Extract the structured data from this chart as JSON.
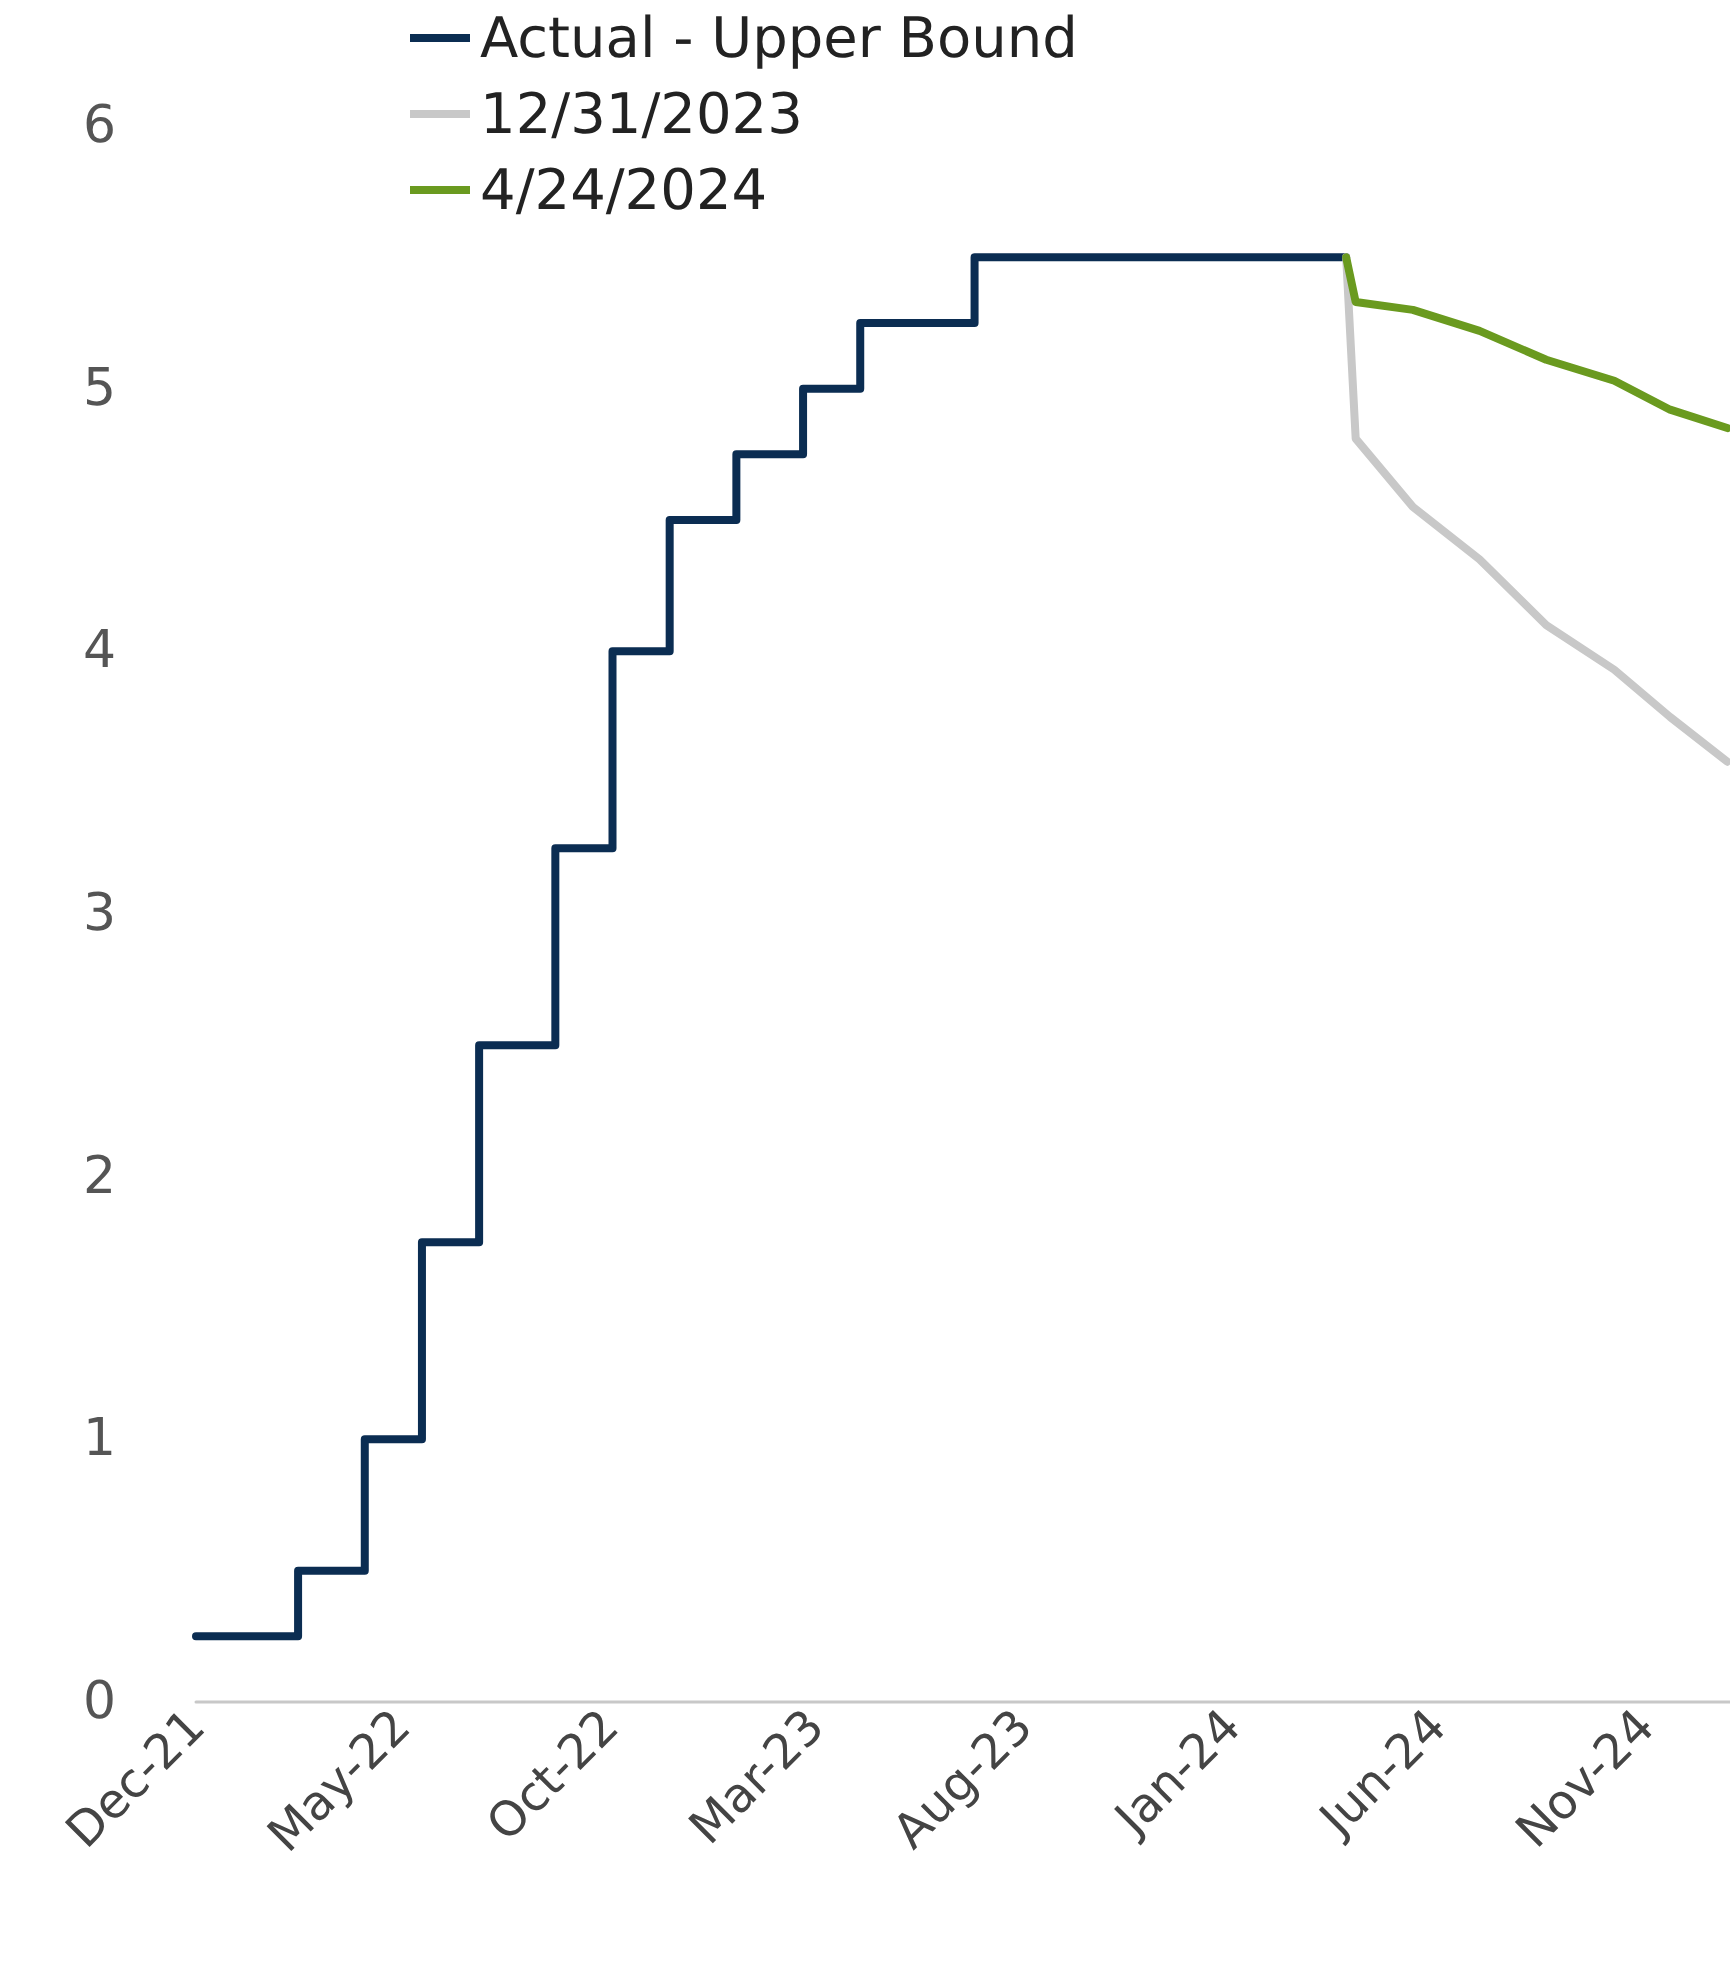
{
  "chart_data": {
    "type": "line",
    "series": [
      {
        "name": "Actual - Upper Bound",
        "type": "step",
        "color": "#0b2d52",
        "x": [
          "2021-12-31",
          "2022-03-16",
          "2022-05-04",
          "2022-06-15",
          "2022-07-27",
          "2022-09-21",
          "2022-11-02",
          "2022-12-14",
          "2023-02-01",
          "2023-03-22",
          "2023-05-03",
          "2023-07-26",
          "2024-04-24"
        ],
        "values": [
          0.25,
          0.5,
          1.0,
          1.75,
          2.5,
          3.25,
          4.0,
          4.5,
          4.75,
          5.0,
          5.25,
          5.5,
          5.5
        ]
      },
      {
        "name": "12/31/2023",
        "color": "#c8c8c8",
        "x": [
          "2024-04-24",
          "2024-05-01",
          "2024-06-12",
          "2024-07-31",
          "2024-09-18",
          "2024-11-07",
          "2024-12-18",
          "2025-01-29"
        ],
        "values": [
          5.5,
          4.81,
          4.55,
          4.35,
          4.1,
          3.93,
          3.75,
          3.58
        ]
      },
      {
        "name": "4/24/2024",
        "color": "#6a9a1f",
        "x": [
          "2024-04-24",
          "2024-05-01",
          "2024-06-12",
          "2024-07-31",
          "2024-09-18",
          "2024-11-07",
          "2024-12-18",
          "2025-01-29"
        ],
        "values": [
          5.5,
          5.33,
          5.3,
          5.22,
          5.11,
          5.03,
          4.92,
          4.85
        ]
      }
    ],
    "xlim": [
      "2021-12-31",
      "2025-01-31"
    ],
    "xticks": [
      {
        "value": "2021-12-31",
        "label": "Dec-21"
      },
      {
        "value": "2022-05-31",
        "label": "May-22"
      },
      {
        "value": "2022-10-31",
        "label": "Oct-22"
      },
      {
        "value": "2023-03-31",
        "label": "Mar-23"
      },
      {
        "value": "2023-08-31",
        "label": "Aug-23"
      },
      {
        "value": "2024-01-31",
        "label": "Jan-24"
      },
      {
        "value": "2024-06-30",
        "label": "Jun-24"
      },
      {
        "value": "2024-11-30",
        "label": "Nov-24"
      }
    ],
    "ylim": [
      0,
      6
    ],
    "yticks": [
      0,
      1,
      2,
      3,
      4,
      5,
      6
    ],
    "grid": false,
    "legend": "top left",
    "marker": "none",
    "line_style": "solid"
  }
}
